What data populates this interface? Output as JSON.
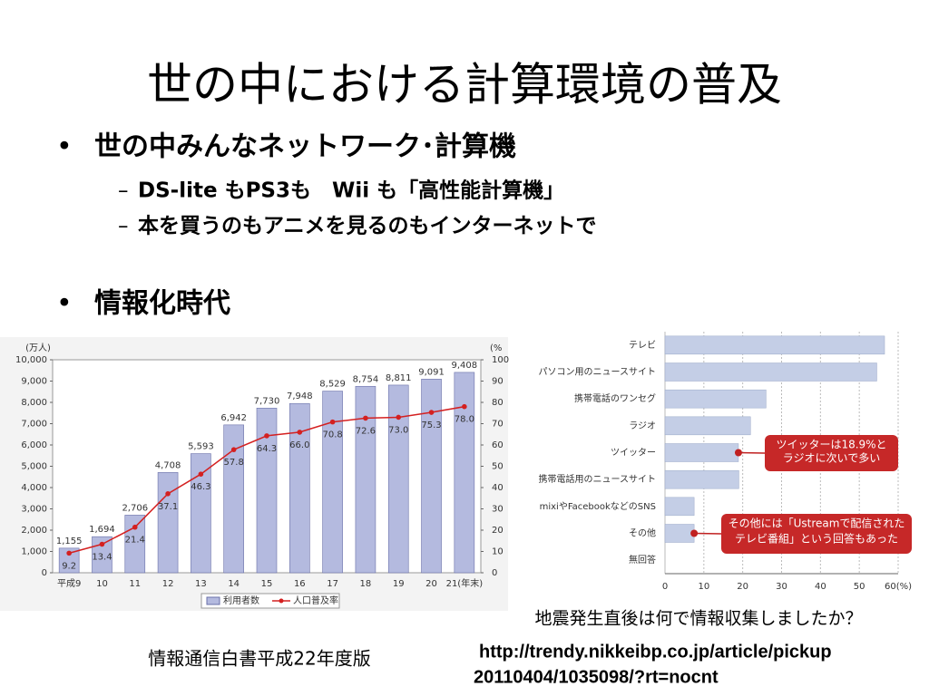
{
  "title": "世の中における計算環境の普及",
  "bullets": [
    {
      "text": "世の中みんなネットワーク･計算機",
      "sub": [
        "DS-lite もPS3も　Wii も「高性能計算機」",
        "本を買うのもアニメを見るのもインターネットで"
      ]
    },
    {
      "text": "情報化時代"
    }
  ],
  "source_left": "情報通信白書平成22年度版",
  "source_right": [
    "http://trendy.nikkeibp.co.jp/article/pickup",
    "20110404/1035098/?rt=nocnt"
  ],
  "chart_data": [
    {
      "type": "bar_line",
      "y_label": "(万人)",
      "y2_label": "(%",
      "categories": [
        "平成9",
        "10",
        "11",
        "12",
        "13",
        "14",
        "15",
        "16",
        "17",
        "18",
        "19",
        "20",
        "21(年末)"
      ],
      "series": [
        {
          "name": "利用者数",
          "color": "#b4badf",
          "values": [
            1155,
            1694,
            2706,
            4708,
            5593,
            6942,
            7730,
            7948,
            8529,
            8754,
            8811,
            9091,
            9408
          ],
          "value_labels": [
            "1,155",
            "1,694",
            "2,706",
            "4,708",
            "5,593",
            "6,942",
            "7,730",
            "7,948",
            "8,529",
            "8,754",
            "8,811",
            "9,091",
            "9,408"
          ]
        },
        {
          "name": "人口普及率",
          "color": "#d42020",
          "axis": "y2",
          "values": [
            9.2,
            13.4,
            21.4,
            37.1,
            46.3,
            57.8,
            64.3,
            66.0,
            70.8,
            72.6,
            73.0,
            75.3,
            78.0
          ],
          "value_labels": [
            "9.2",
            "13.4",
            "21.4",
            "37.1",
            "46.3",
            "57.8",
            "64.3",
            "66.0",
            "70.8",
            "72.6",
            "73.0",
            "75.3",
            "78.0"
          ]
        }
      ],
      "ylim": [
        0,
        10000
      ],
      "yticks": [
        0,
        {
          "value": 1000,
          "label": "1,000"
        },
        {
          "value": 2000,
          "label": "2,000"
        },
        {
          "value": 3000,
          "label": "3,000"
        },
        {
          "value": 4000,
          "label": "4,000"
        },
        {
          "value": 5000,
          "label": "5,000"
        },
        {
          "value": 6000,
          "label": "6,000"
        },
        {
          "value": 7000,
          "label": "7,000"
        },
        {
          "value": 8000,
          "label": "8,000"
        },
        {
          "value": 9000,
          "label": "9,000"
        },
        {
          "value": 10000,
          "label": "10,000"
        }
      ],
      "y2lim": [
        0,
        100
      ],
      "y2ticks": [
        0,
        10,
        20,
        30,
        40,
        50,
        60,
        70,
        80,
        90,
        100
      ]
    },
    {
      "type": "barh",
      "title": "地震発生直後は何で情報収集しましたか？",
      "categories": [
        "テレビ",
        "パソコン用のニュースサイト",
        "携帯電話のワンセグ",
        "ラジオ",
        "ツイッター",
        "携帯電話用のニュースサイト",
        "mixiやFacebookなどのSNS",
        "その他",
        "無回答"
      ],
      "values": [
        56.5,
        54.5,
        26,
        22,
        18.9,
        19,
        7.5,
        7.5,
        0
      ],
      "color": "#c4cee6",
      "xlim": [
        0,
        60
      ],
      "xticks": [
        0,
        10,
        20,
        30,
        40,
        50,
        {
          "value": 60,
          "label": "60(%)"
        }
      ],
      "grid": true,
      "annotations": [
        {
          "lines": [
            "ツイッターは18.9%と",
            "ラジオに次いで多い"
          ],
          "category": 4
        },
        {
          "lines": [
            "その他には「Ustreamで配信された",
            "テレビ番組」という回答もあった"
          ],
          "category": 7
        }
      ]
    }
  ]
}
